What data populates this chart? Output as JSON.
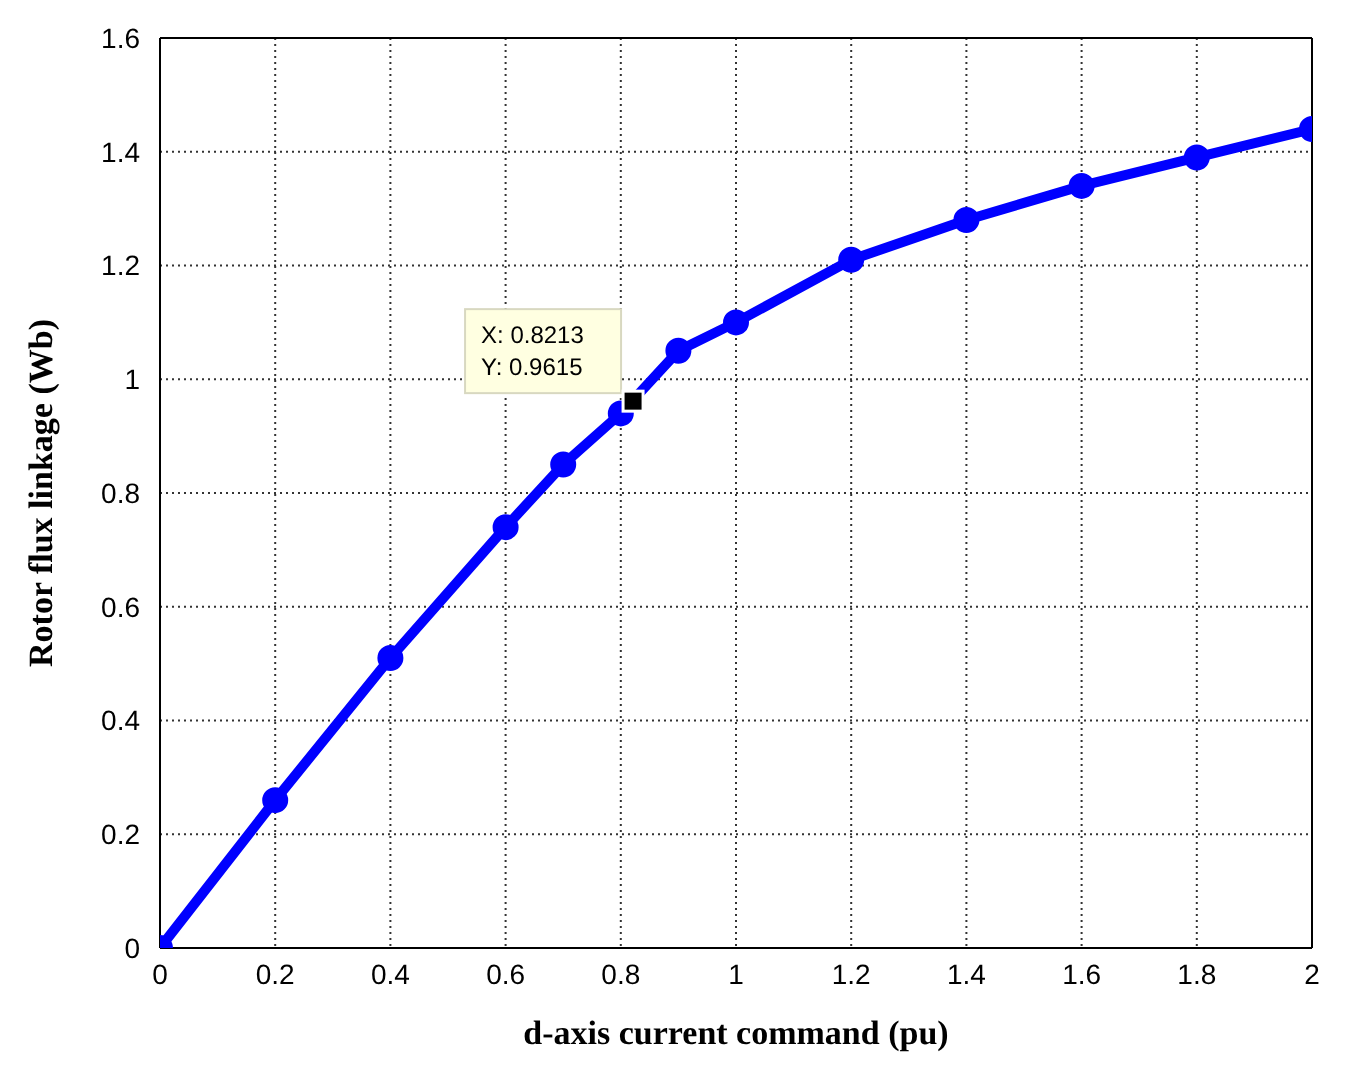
{
  "chart_data": {
    "type": "line",
    "xlabel": "d-axis current command (pu)",
    "ylabel": "Rotor flux linkage (Wb)",
    "x": [
      0,
      0.2,
      0.4,
      0.6,
      0.7,
      0.8,
      0.9,
      1.0,
      1.2,
      1.4,
      1.6,
      1.8,
      2.0
    ],
    "series": [
      {
        "color": "#0000ff",
        "values": [
          0,
          0.26,
          0.51,
          0.74,
          0.85,
          0.94,
          1.05,
          1.1,
          1.21,
          1.28,
          1.34,
          1.39,
          1.44
        ]
      }
    ],
    "xlim": [
      0,
      2
    ],
    "xticks": [
      0,
      0.2,
      0.4,
      0.6,
      0.8,
      1,
      1.2,
      1.4,
      1.6,
      1.8,
      2
    ],
    "ylim": [
      0,
      1.6
    ],
    "yticks": [
      0,
      0.2,
      0.4,
      0.6,
      0.8,
      1,
      1.2,
      1.4,
      1.6
    ],
    "grid": true,
    "marker": "circle",
    "line_style": "solid",
    "annotations": [
      {
        "text": "X: 0.8213\nY: 0.9615",
        "x": 0.8213,
        "y": 0.9615
      }
    ]
  }
}
